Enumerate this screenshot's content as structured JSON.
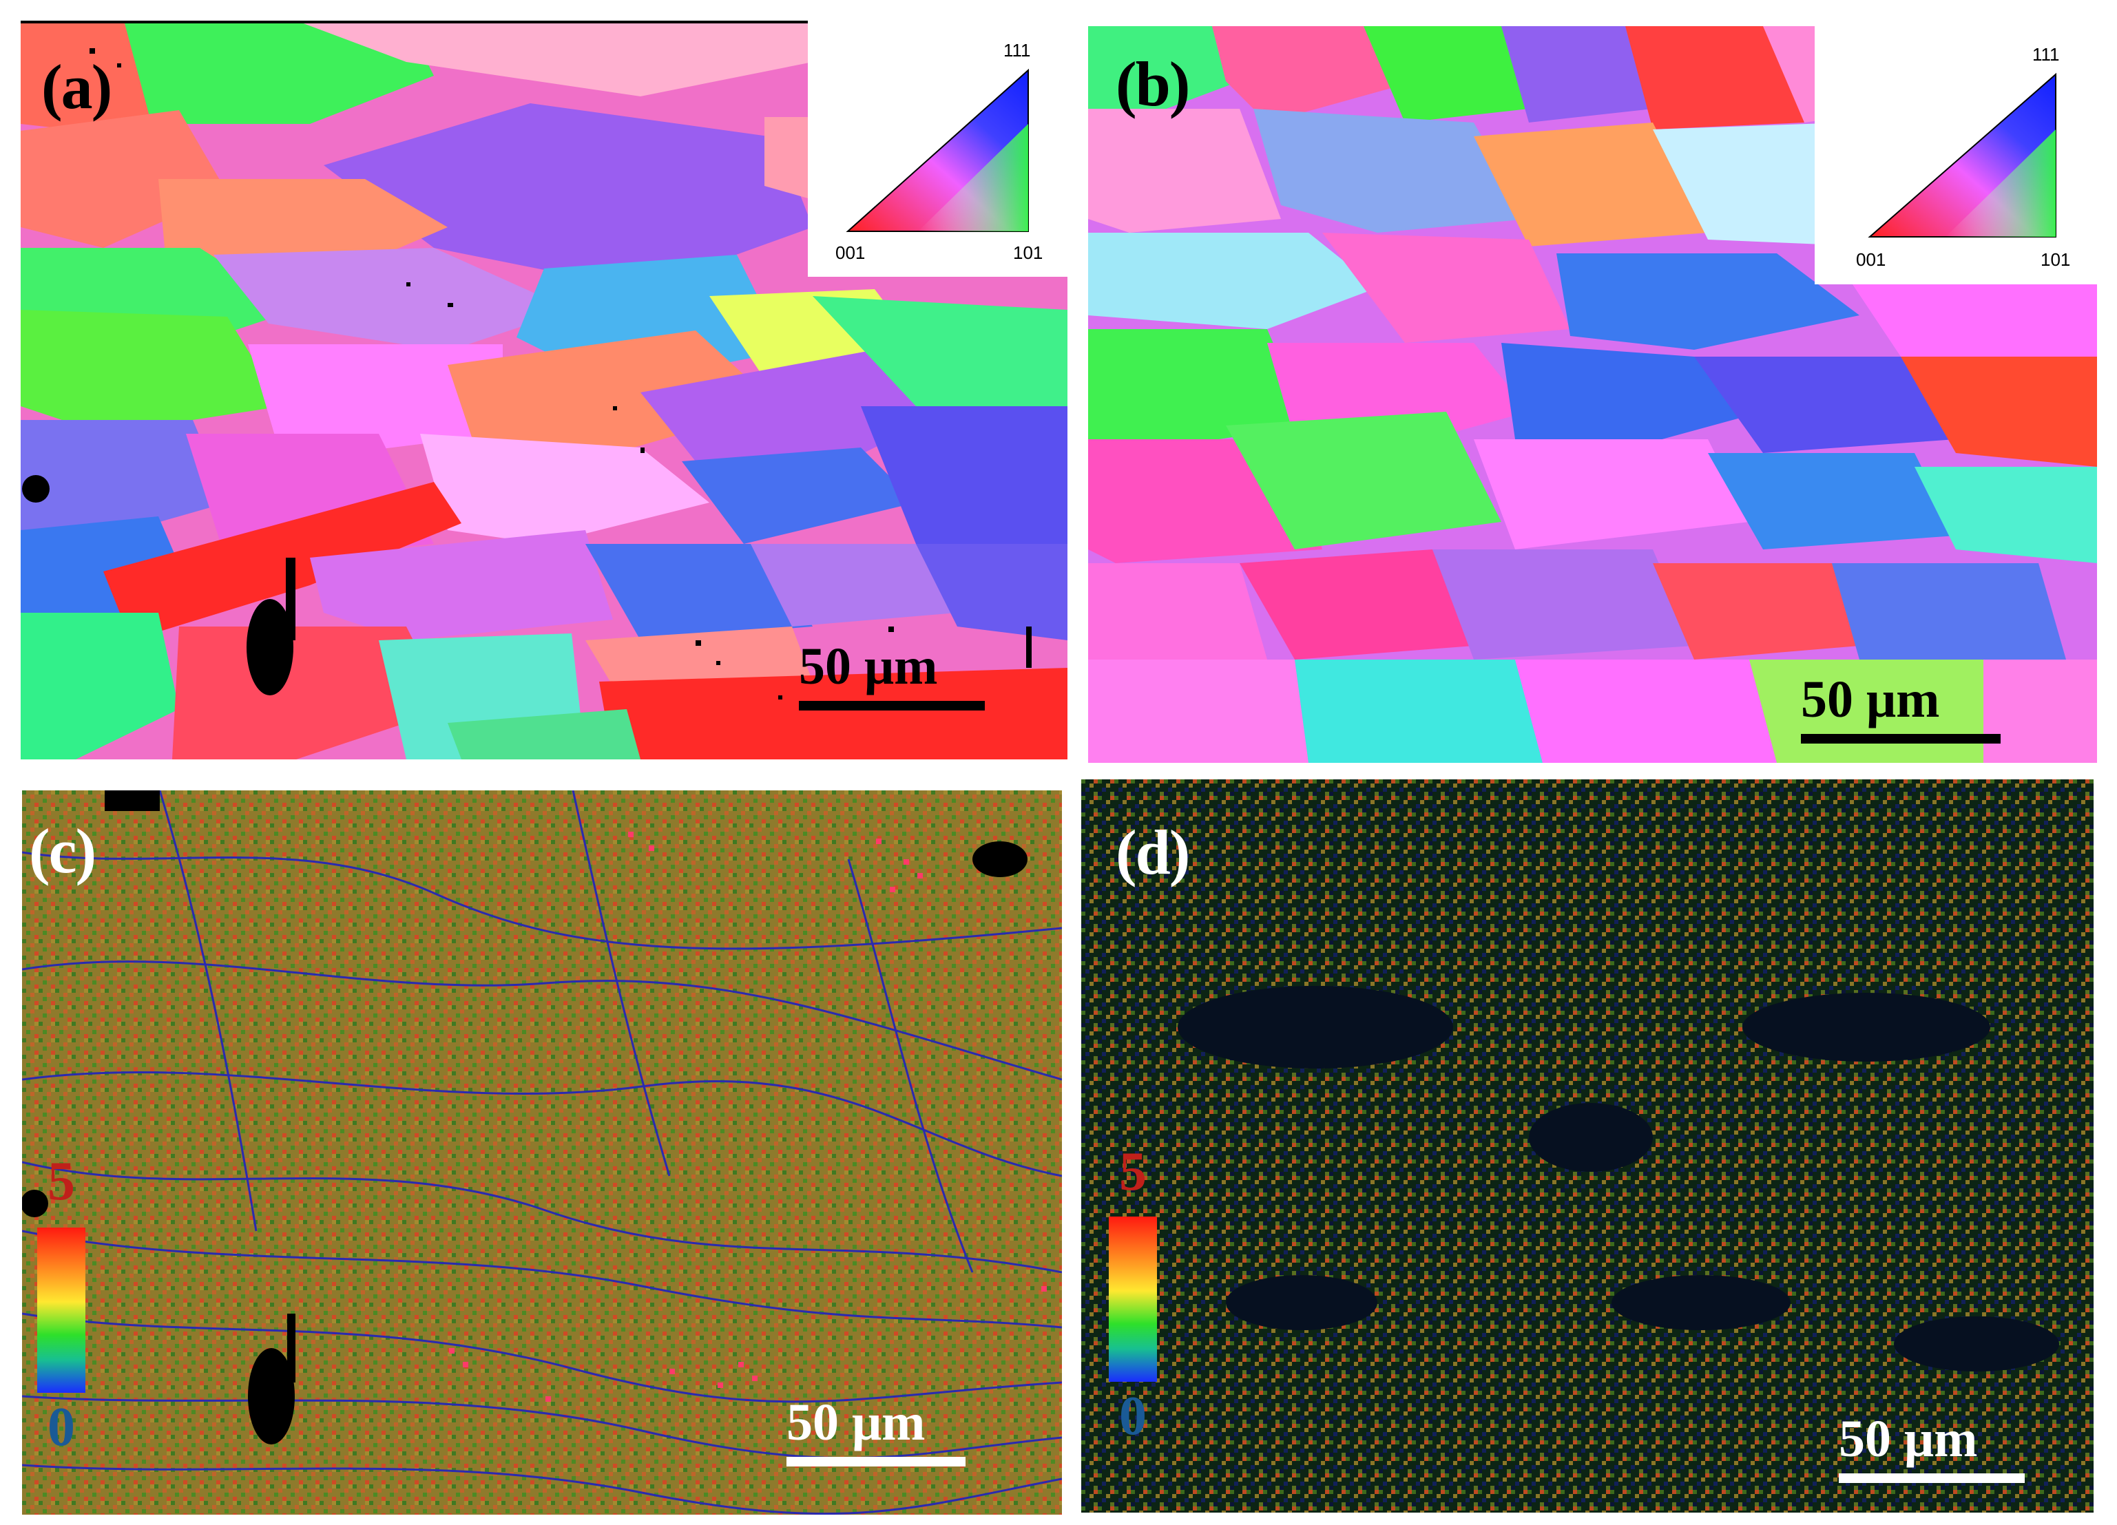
{
  "panels": {
    "a": {
      "label": "(a)",
      "scale_bar": "50 μm"
    },
    "b": {
      "label": "(b)",
      "scale_bar": "50 μm"
    },
    "c": {
      "label": "(c)",
      "scale_bar": "50 μm"
    },
    "d": {
      "label": "(d)",
      "scale_bar": "50 μm"
    }
  },
  "ipf_key": {
    "top": "111",
    "left": "001",
    "right": "101"
  },
  "colorbar": {
    "max": "5",
    "min": "0"
  },
  "colors": {
    "scale_dark": "#000000",
    "scale_light": "#ffffff",
    "cb_max_text": "#c0201a",
    "cb_min_text": "#1a5a96",
    "kam_c_base": "#8f7a2c",
    "kam_d_base": "#0c2414"
  }
}
